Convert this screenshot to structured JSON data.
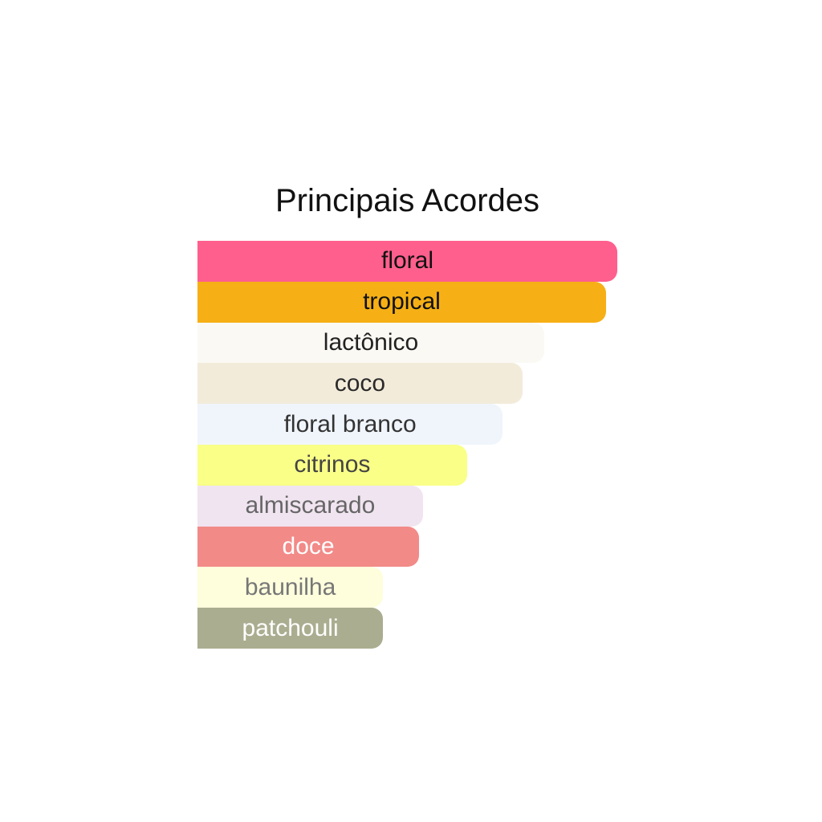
{
  "chart_data": {
    "type": "bar",
    "orientation": "horizontal",
    "title": "Principais Acordes",
    "xlim": [
      0,
      100
    ],
    "grid": false,
    "bars": [
      {
        "label": "floral",
        "value": 100,
        "color": "#FF5F8D",
        "text_color": "#111111"
      },
      {
        "label": "tropical",
        "value": 97.3,
        "color": "#F6B015",
        "text_color": "#111111"
      },
      {
        "label": "lactônico",
        "value": 82.6,
        "color": "#FAF9F4",
        "text_color": "#222222"
      },
      {
        "label": "coco",
        "value": 77.4,
        "color": "#F3EBDA",
        "text_color": "#2a2a2a"
      },
      {
        "label": "floral branco",
        "value": 72.7,
        "color": "#F0F5FC",
        "text_color": "#333333"
      },
      {
        "label": "citrinos",
        "value": 64.2,
        "color": "#F9FF87",
        "text_color": "#444444"
      },
      {
        "label": "almiscarado",
        "value": 53.7,
        "color": "#F0E4F0",
        "text_color": "#666666"
      },
      {
        "label": "doce",
        "value": 52.8,
        "color": "#F28A88",
        "text_color": "#FFFFFF"
      },
      {
        "label": "baunilha",
        "value": 44.2,
        "color": "#FEFDDC",
        "text_color": "#777777"
      },
      {
        "label": "patchouli",
        "value": 44.2,
        "color": "#ABAD90",
        "text_color": "#FFFFFF"
      }
    ]
  }
}
